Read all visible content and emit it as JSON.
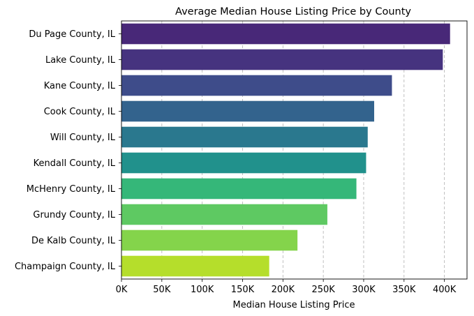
{
  "chart_data": {
    "type": "bar",
    "orientation": "horizontal",
    "title": "Average Median House Listing Price by County",
    "xlabel": "Median House Listing Price",
    "ylabel": "",
    "xlim": [
      0,
      428000
    ],
    "xticks": [
      0,
      50000,
      100000,
      150000,
      200000,
      250000,
      300000,
      350000,
      400000
    ],
    "xtick_labels": [
      "0K",
      "50K",
      "100K",
      "150K",
      "200K",
      "250K",
      "300K",
      "350K",
      "400K"
    ],
    "grid": "x-dashed",
    "categories": [
      "Du Page County, IL",
      "Lake County, IL",
      "Kane County, IL",
      "Cook County, IL",
      "Will County, IL",
      "Kendall County, IL",
      "McHenry County, IL",
      "Grundy County, IL",
      "De Kalb County, IL",
      "Champaign County, IL"
    ],
    "values": [
      407000,
      398000,
      335000,
      313000,
      305000,
      303000,
      291000,
      255000,
      218000,
      183000
    ],
    "colors": [
      "#482878",
      "#46337f",
      "#3e4c8a",
      "#33638d",
      "#2a788e",
      "#21918c",
      "#35b779",
      "#5ec962",
      "#84d44b",
      "#b5de2b"
    ]
  }
}
